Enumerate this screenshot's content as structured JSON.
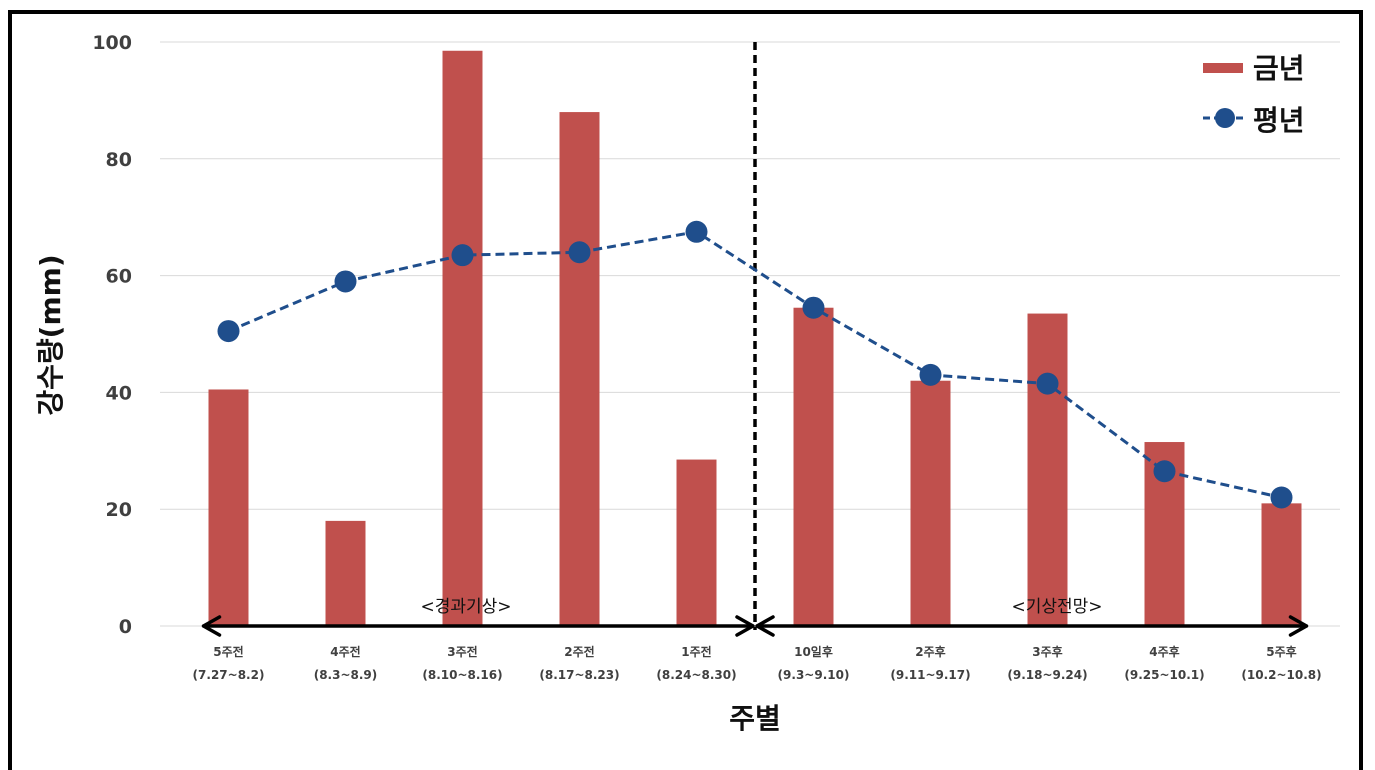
{
  "chart_data": {
    "type": "bar",
    "xlabel": "주별",
    "ylabel": "강수량(mm)",
    "ylim": [
      0,
      100
    ],
    "yticks": [
      0,
      20,
      40,
      60,
      80,
      100
    ],
    "categories": [
      [
        "5주전",
        "(7.27~8.2)"
      ],
      [
        "4주전",
        "(8.3~8.9)"
      ],
      [
        "3주전",
        "(8.10~8.16)"
      ],
      [
        "2주전",
        "(8.17~8.23)"
      ],
      [
        "1주전",
        "(8.24~8.30)"
      ],
      [
        "10일후",
        "(9.3~9.10)"
      ],
      [
        "2주후",
        "(9.11~9.17)"
      ],
      [
        "3주후",
        "(9.18~9.24)"
      ],
      [
        "4주후",
        "(9.25~10.1)"
      ],
      [
        "5주후",
        "(10.2~10.8)"
      ]
    ],
    "series": [
      {
        "name": "금년",
        "type": "bar",
        "color": "#c0504d",
        "values": [
          40.5,
          18,
          98.5,
          88,
          28.5,
          54.5,
          42,
          53.5,
          31.5,
          21
        ]
      },
      {
        "name": "평년",
        "type": "line",
        "style": "dashed",
        "color": "#1f4e8c",
        "values": [
          50.5,
          59,
          63.5,
          64,
          67.5,
          54.5,
          43,
          41.5,
          26.5,
          22
        ]
      }
    ],
    "annotations": {
      "left_region": "<경과기상>",
      "right_region": "<기상전망>"
    },
    "legend_position": "top-right",
    "grid": "horizontal"
  }
}
